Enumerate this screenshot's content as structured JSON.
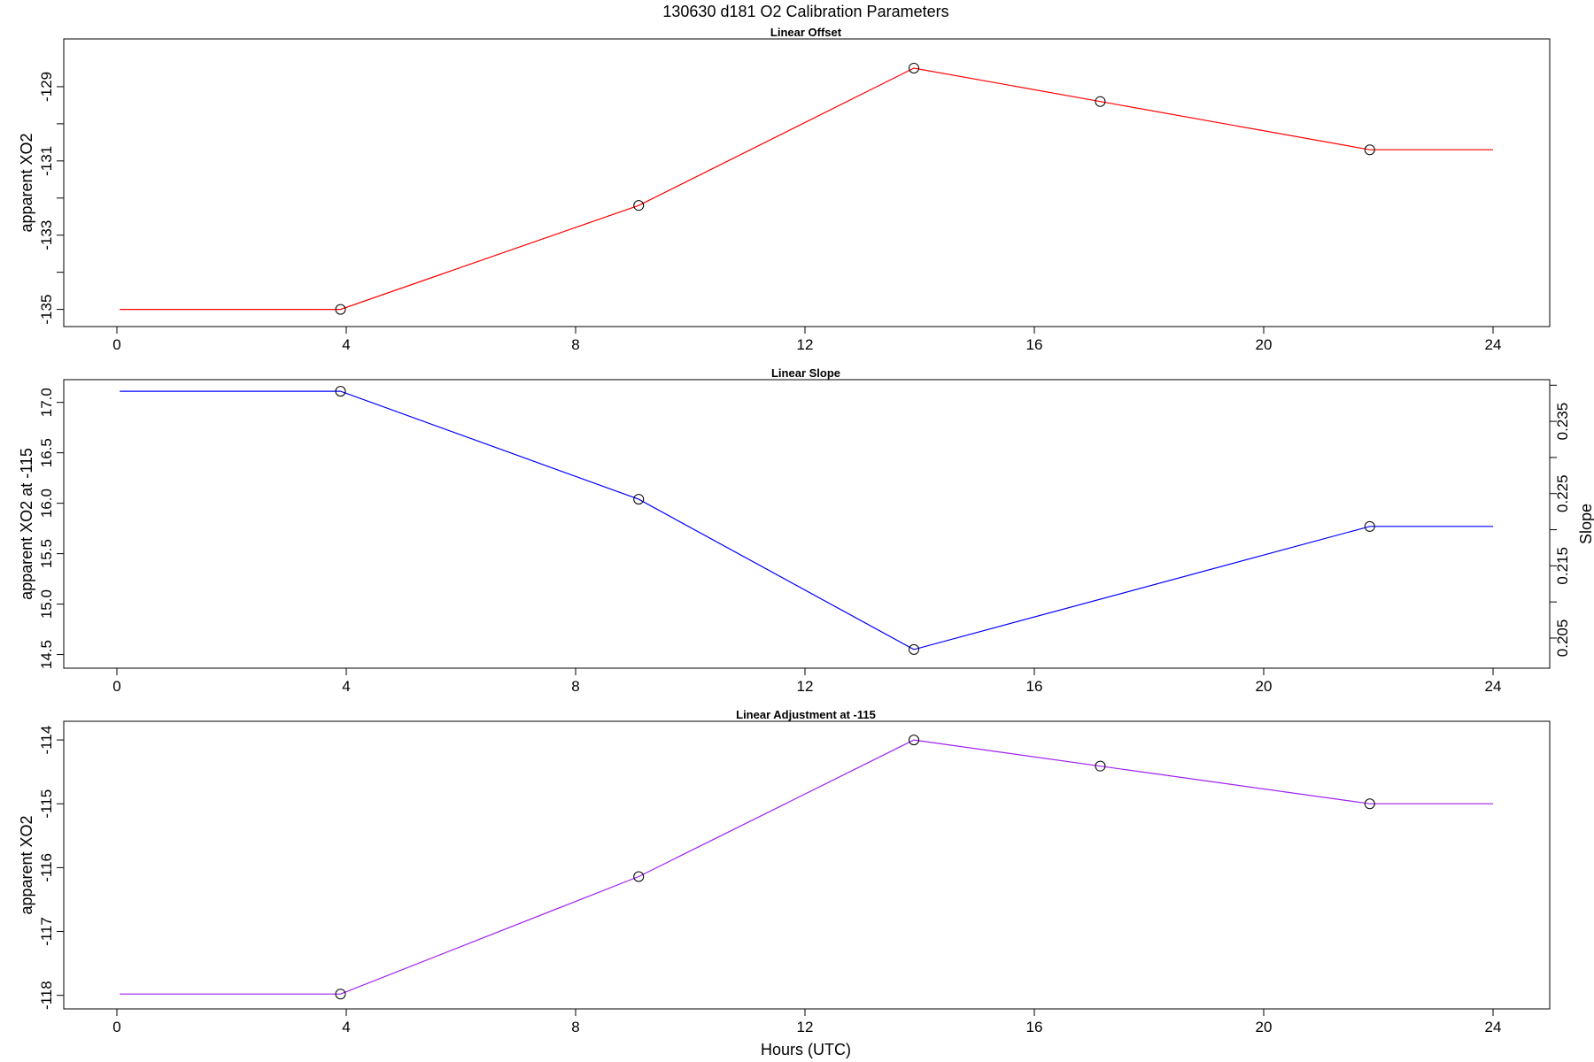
{
  "figure": {
    "title": "130630   d181   O2 Calibration Parameters",
    "xlabel": "Hours (UTC)"
  },
  "chart_data": [
    {
      "type": "line",
      "title": "Linear Offset",
      "xlabel": "",
      "ylabel": "apparent XO2",
      "xlim": [
        0,
        24
      ],
      "ylim": [
        -135.2,
        -128.0
      ],
      "x_ticks": [
        0,
        4,
        8,
        12,
        16,
        20,
        24
      ],
      "x_tick_labels": [
        "0",
        "4",
        "8",
        "12",
        "16",
        "20",
        "24"
      ],
      "y_ticks": [
        -135,
        -134,
        -133,
        -132,
        -131,
        -130,
        -129
      ],
      "y_tick_labels": [
        "-135",
        "",
        "-133",
        "",
        "-131",
        "",
        "-129"
      ],
      "grid": false,
      "series": [
        {
          "color": "#ff0000",
          "x": [
            0.05,
            3.9,
            9.1,
            13.9,
            17.15,
            21.85,
            24.0
          ],
          "y": [
            -135.0,
            -135.0,
            -132.2,
            -128.5,
            -129.4,
            -130.7,
            -130.7
          ],
          "markers": [
            false,
            true,
            true,
            true,
            true,
            true,
            false
          ]
        }
      ]
    },
    {
      "type": "line",
      "title": "Linear Slope",
      "xlabel": "",
      "ylabel": "apparent XO2 at -115",
      "y2label": "Slope",
      "xlim": [
        0,
        24
      ],
      "ylim": [
        14.47,
        17.12
      ],
      "y_ticks": [
        14.5,
        15.0,
        15.5,
        16.0,
        16.5,
        17.0
      ],
      "y_tick_labels": [
        "14.5",
        "15.0",
        "15.5",
        "16.0",
        "16.5",
        "17.0"
      ],
      "y2lim": [
        0.2023,
        0.2393
      ],
      "y2_ticks": [
        0.205,
        0.21,
        0.215,
        0.22,
        0.225,
        0.23,
        0.235
      ],
      "y2_tick_labels": [
        "0.205",
        "",
        "0.215",
        "",
        "0.225",
        "",
        "0.235"
      ],
      "y2_extra_tick": 0.24,
      "x_ticks": [
        0,
        4,
        8,
        12,
        16,
        20,
        24
      ],
      "x_tick_labels": [
        "0",
        "4",
        "8",
        "12",
        "16",
        "20",
        "24"
      ],
      "grid": false,
      "series": [
        {
          "color": "#0000ff",
          "x": [
            0.05,
            3.9,
            9.1,
            13.9,
            21.85,
            24.0
          ],
          "y": [
            17.11,
            17.11,
            16.04,
            14.55,
            15.77,
            15.77
          ],
          "markers": [
            false,
            true,
            true,
            true,
            true,
            false
          ]
        }
      ]
    },
    {
      "type": "line",
      "title": "Linear Adjustment at -115",
      "xlabel": "Hours (UTC)",
      "ylabel": "apparent XO2",
      "xlim": [
        0,
        24
      ],
      "ylim": [
        -118.06,
        -113.86
      ],
      "y_ticks": [
        -118,
        -117,
        -116,
        -115,
        -114
      ],
      "y_tick_labels": [
        "-118",
        "-117",
        "-116",
        "-115",
        "-114"
      ],
      "x_ticks": [
        0,
        4,
        8,
        12,
        16,
        20,
        24
      ],
      "x_tick_labels": [
        "0",
        "4",
        "8",
        "12",
        "16",
        "20",
        "24"
      ],
      "grid": false,
      "series": [
        {
          "color": "#a020f0",
          "x": [
            0.05,
            3.9,
            9.1,
            13.9,
            17.15,
            21.85,
            24.0
          ],
          "y": [
            -117.98,
            -117.98,
            -116.14,
            -114.0,
            -114.41,
            -115.0,
            -115.0
          ],
          "markers": [
            false,
            true,
            true,
            true,
            true,
            true,
            false
          ]
        }
      ]
    }
  ]
}
